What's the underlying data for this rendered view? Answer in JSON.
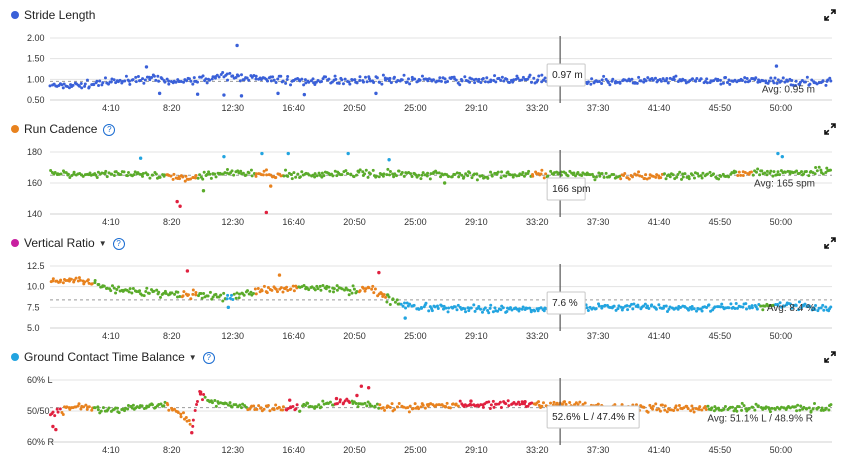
{
  "colors": {
    "stride": "#3a60d8",
    "cadence_green": "#5aab2a",
    "cadence_orange": "#e8821e",
    "cadence_red": "#e0213f",
    "cadence_blue": "#22a4e0",
    "vr_green": "#5aab2a",
    "vr_orange": "#e8821e",
    "vr_red": "#e0213f",
    "vr_blue": "#22a4e0",
    "gct_green": "#5aab2a",
    "gct_orange": "#e8821e",
    "gct_red": "#e0213f",
    "title_dot_stride": "#3a60d8",
    "title_dot_cadence": "#e8821e",
    "title_dot_vr": "#c81fa0",
    "title_dot_gct": "#22a4e0"
  },
  "icons": {
    "expand": "expand-arrows-icon",
    "help": "help-circle-icon",
    "dropdown": "dropdown-caret-icon"
  },
  "cursor_time_min": 34.9,
  "chart_data": [
    {
      "type": "scatter",
      "title": "Stride Length",
      "has_help": false,
      "has_dropdown": false,
      "xlim": [
        0,
        53.5
      ],
      "x_ticks": [
        "4:10",
        "8:20",
        "12:30",
        "16:40",
        "20:50",
        "25:00",
        "29:10",
        "33:20",
        "37:30",
        "41:40",
        "45:50",
        "50:00"
      ],
      "x_tick_values": [
        4.1667,
        8.3333,
        12.5,
        16.6667,
        20.8333,
        25,
        29.1667,
        33.3333,
        37.5,
        41.6667,
        45.8333,
        50
      ],
      "y_ticks": [
        "2.00",
        "1.50",
        "1.00",
        "0.50"
      ],
      "y_tick_values": [
        2.0,
        1.5,
        1.0,
        0.5
      ],
      "ylim": [
        0.5,
        2.0
      ],
      "avg_value": 0.95,
      "avg_label": "Avg: 0.95 m",
      "tooltip": "0.97 m",
      "profile": [
        [
          0,
          0.85
        ],
        [
          3,
          0.88
        ],
        [
          6,
          1.02
        ],
        [
          9,
          0.95
        ],
        [
          12,
          1.08
        ],
        [
          15,
          1.0
        ],
        [
          18,
          0.95
        ],
        [
          22,
          1.0
        ],
        [
          27,
          0.97
        ],
        [
          33,
          1.0
        ],
        [
          37,
          0.95
        ],
        [
          42,
          0.97
        ],
        [
          48,
          0.96
        ],
        [
          53.5,
          0.94
        ]
      ],
      "outliers": [
        [
          12.8,
          1.82
        ],
        [
          11.9,
          0.62
        ],
        [
          13.1,
          0.6
        ],
        [
          7.5,
          0.66
        ],
        [
          10.1,
          0.64
        ],
        [
          6.6,
          1.3
        ],
        [
          15.6,
          0.66
        ],
        [
          49.7,
          1.32
        ],
        [
          17.4,
          0.63
        ],
        [
          22.3,
          0.66
        ]
      ],
      "bands": [
        {
          "from": 0,
          "to": 53.5,
          "color": "stride"
        }
      ]
    },
    {
      "type": "scatter",
      "title": "Run Cadence",
      "has_help": true,
      "has_dropdown": false,
      "xlim": [
        0,
        53.5
      ],
      "x_ticks": [
        "4:10",
        "8:20",
        "12:30",
        "16:40",
        "20:50",
        "25:00",
        "29:10",
        "33:20",
        "37:30",
        "41:40",
        "45:50",
        "50:00"
      ],
      "x_tick_values": [
        4.1667,
        8.3333,
        12.5,
        16.6667,
        20.8333,
        25,
        29.1667,
        33.3333,
        37.5,
        41.6667,
        45.8333,
        50
      ],
      "y_ticks": [
        "180",
        "160",
        "140"
      ],
      "y_tick_values": [
        180,
        160,
        140
      ],
      "ylim": [
        140,
        180
      ],
      "avg_value": 165,
      "avg_label": "Avg: 165 spm",
      "tooltip": "166 spm",
      "profile": [
        [
          0,
          166
        ],
        [
          5,
          166
        ],
        [
          9,
          163
        ],
        [
          12,
          167
        ],
        [
          16,
          165
        ],
        [
          20,
          166
        ],
        [
          24,
          166
        ],
        [
          30,
          165
        ],
        [
          35,
          166
        ],
        [
          40,
          164
        ],
        [
          45,
          165
        ],
        [
          48,
          166
        ],
        [
          51,
          167
        ],
        [
          53.5,
          168
        ]
      ],
      "outliers": [
        [
          8.7,
          148
        ],
        [
          8.9,
          145
        ],
        [
          14.8,
          141
        ],
        [
          10.5,
          155
        ],
        [
          15.1,
          158
        ],
        [
          6.2,
          176
        ],
        [
          11.9,
          177
        ],
        [
          14.5,
          179
        ],
        [
          16.3,
          179
        ],
        [
          20.4,
          179
        ],
        [
          23.2,
          175
        ],
        [
          49.8,
          179
        ],
        [
          50.1,
          177
        ],
        [
          27,
          160
        ]
      ],
      "bands": [
        {
          "from": 0,
          "to": 8,
          "color": "cadence_green"
        },
        {
          "from": 8,
          "to": 10,
          "color": "cadence_orange"
        },
        {
          "from": 10,
          "to": 14,
          "color": "cadence_green"
        },
        {
          "from": 14,
          "to": 16,
          "color": "cadence_orange"
        },
        {
          "from": 16,
          "to": 33,
          "color": "cadence_green"
        },
        {
          "from": 33,
          "to": 34,
          "color": "cadence_orange"
        },
        {
          "from": 34,
          "to": 39,
          "color": "cadence_green"
        },
        {
          "from": 39,
          "to": 42,
          "color": "cadence_orange"
        },
        {
          "from": 42,
          "to": 47,
          "color": "cadence_green"
        },
        {
          "from": 47,
          "to": 48,
          "color": "cadence_orange"
        },
        {
          "from": 48,
          "to": 53.5,
          "color": "cadence_green"
        }
      ]
    },
    {
      "type": "scatter",
      "title": "Vertical Ratio",
      "has_help": true,
      "has_dropdown": true,
      "xlim": [
        0,
        53.5
      ],
      "x_ticks": [
        "4:10",
        "8:20",
        "12:30",
        "16:40",
        "20:50",
        "25:00",
        "29:10",
        "33:20",
        "37:30",
        "41:40",
        "45:50",
        "50:00"
      ],
      "x_tick_values": [
        4.1667,
        8.3333,
        12.5,
        16.6667,
        20.8333,
        25,
        29.1667,
        33.3333,
        37.5,
        41.6667,
        45.8333,
        50
      ],
      "y_ticks": [
        "12.5",
        "10.0",
        "7.5",
        "5.0"
      ],
      "y_tick_values": [
        12.5,
        10.0,
        7.5,
        5.0
      ],
      "ylim": [
        5,
        12.5
      ],
      "avg_value": 8.4,
      "avg_label": "Avg: 8.4 %",
      "tooltip": "7.6 %",
      "profile": [
        [
          0,
          10.5
        ],
        [
          2,
          10.8
        ],
        [
          4,
          9.8
        ],
        [
          7,
          9.2
        ],
        [
          10,
          9.0
        ],
        [
          12,
          8.7
        ],
        [
          14,
          9.4
        ],
        [
          17,
          10.0
        ],
        [
          20,
          9.6
        ],
        [
          22,
          9.8
        ],
        [
          23.2,
          8.4
        ],
        [
          25,
          7.5
        ],
        [
          30,
          7.2
        ],
        [
          35,
          7.4
        ],
        [
          40,
          7.6
        ],
        [
          45,
          7.4
        ],
        [
          50,
          7.8
        ],
        [
          53.5,
          7.4
        ]
      ],
      "outliers": [
        [
          9.4,
          11.9
        ],
        [
          22.5,
          11.7
        ],
        [
          15.7,
          11.4
        ],
        [
          12.2,
          7.5
        ],
        [
          23.1,
          9.0
        ],
        [
          24.3,
          6.2
        ]
      ],
      "bands": [
        {
          "from": 0,
          "to": 3,
          "color": "vr_orange"
        },
        {
          "from": 3,
          "to": 9,
          "color": "vr_green"
        },
        {
          "from": 9,
          "to": 10,
          "color": "vr_orange"
        },
        {
          "from": 10,
          "to": 12,
          "color": "vr_green"
        },
        {
          "from": 12,
          "to": 12.6,
          "color": "vr_blue"
        },
        {
          "from": 12.6,
          "to": 14,
          "color": "vr_green"
        },
        {
          "from": 14,
          "to": 17,
          "color": "vr_orange"
        },
        {
          "from": 17,
          "to": 21,
          "color": "vr_green"
        },
        {
          "from": 21,
          "to": 23,
          "color": "vr_orange"
        },
        {
          "from": 23,
          "to": 24,
          "color": "vr_green"
        },
        {
          "from": 24,
          "to": 48.5,
          "color": "vr_blue"
        },
        {
          "from": 48.5,
          "to": 49.5,
          "color": "vr_green"
        },
        {
          "from": 49.5,
          "to": 53.5,
          "color": "vr_blue"
        }
      ]
    },
    {
      "type": "scatter",
      "title": "Ground Contact Time Balance",
      "has_help": true,
      "has_dropdown": true,
      "xlim": [
        0,
        53.5
      ],
      "x_ticks": [
        "4:10",
        "8:20",
        "12:30",
        "16:40",
        "20:50",
        "25:00",
        "29:10",
        "33:20",
        "37:30",
        "41:40",
        "45:50",
        "50:00"
      ],
      "x_tick_values": [
        4.1667,
        8.3333,
        12.5,
        16.6667,
        20.8333,
        25,
        29.1667,
        33.3333,
        37.5,
        41.6667,
        45.8333,
        50
      ],
      "y_ticks": [
        "60% L",
        "50/50",
        "60% R"
      ],
      "y_tick_values": [
        60,
        50,
        40
      ],
      "ylim": [
        40,
        60
      ],
      "avg_value": 51.1,
      "avg_label": "Avg: 51.1% L / 48.9% R",
      "tooltip": "52.6% L / 47.4% R",
      "profile": [
        [
          0,
          49
        ],
        [
          2,
          52
        ],
        [
          4,
          50
        ],
        [
          6,
          51
        ],
        [
          8,
          52
        ],
        [
          9.8,
          46
        ],
        [
          10.2,
          56
        ],
        [
          11,
          53
        ],
        [
          14,
          51
        ],
        [
          17,
          51
        ],
        [
          20,
          53
        ],
        [
          22,
          52
        ],
        [
          23,
          51
        ],
        [
          28,
          52
        ],
        [
          35,
          52
        ],
        [
          40,
          51
        ],
        [
          45,
          51
        ],
        [
          50,
          51
        ],
        [
          53.5,
          51
        ]
      ],
      "outliers": [
        [
          0.2,
          45
        ],
        [
          0.4,
          44
        ],
        [
          9.7,
          43
        ],
        [
          21.3,
          58
        ],
        [
          21.8,
          57.5
        ],
        [
          10.3,
          55.5
        ],
        [
          21,
          55
        ],
        [
          19.6,
          54
        ],
        [
          16.4,
          53.5
        ],
        [
          32.5,
          53
        ],
        [
          28.8,
          53.2
        ]
      ],
      "bands": [
        {
          "from": 0,
          "to": 0.8,
          "color": "gct_red"
        },
        {
          "from": 0.8,
          "to": 3,
          "color": "gct_orange"
        },
        {
          "from": 3,
          "to": 8,
          "color": "gct_green"
        },
        {
          "from": 8,
          "to": 9.6,
          "color": "gct_orange"
        },
        {
          "from": 9.6,
          "to": 10.6,
          "color": "gct_red"
        },
        {
          "from": 10.6,
          "to": 13.5,
          "color": "gct_green"
        },
        {
          "from": 13.5,
          "to": 16,
          "color": "gct_orange"
        },
        {
          "from": 16,
          "to": 17,
          "color": "gct_red"
        },
        {
          "from": 17,
          "to": 19.5,
          "color": "gct_green"
        },
        {
          "from": 19.5,
          "to": 20.5,
          "color": "gct_red"
        },
        {
          "from": 20.5,
          "to": 22.5,
          "color": "gct_green"
        },
        {
          "from": 22.5,
          "to": 28,
          "color": "gct_orange"
        },
        {
          "from": 28,
          "to": 33,
          "color": "gct_red"
        },
        {
          "from": 33,
          "to": 45,
          "color": "gct_orange"
        },
        {
          "from": 45,
          "to": 53.5,
          "color": "gct_green"
        }
      ]
    }
  ]
}
